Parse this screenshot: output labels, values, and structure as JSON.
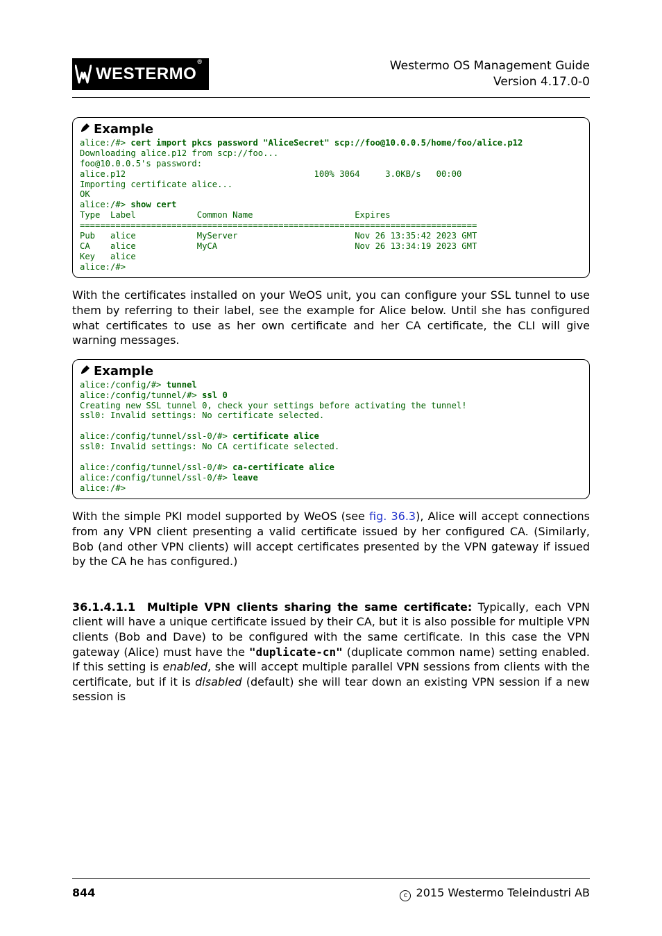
{
  "header": {
    "guide_title": "Westermo OS Management Guide",
    "version_line": "Version 4.17.0-0",
    "logo_text": "WESTERMO",
    "logo_bg": "#000000",
    "logo_fg": "#ffffff"
  },
  "example1": {
    "label": "Example",
    "terminal_color": "#006000",
    "lines": [
      {
        "prompt": "alice:/#> ",
        "cmd": "cert import pkcs password \"AliceSecret\" scp://foo@10.0.0.5/home/foo/alice.p12"
      },
      {
        "text": "Downloading alice.p12 from scp://foo..."
      },
      {
        "text": "foo@10.0.0.5's password:"
      },
      {
        "text": "alice.p12                                     100% 3064     3.0KB/s   00:00"
      },
      {
        "text": "Importing certificate alice..."
      },
      {
        "text": "OK"
      },
      {
        "prompt": "alice:/#> ",
        "cmd": "show cert"
      },
      {
        "text": "Type  Label            Common Name                    Expires"
      },
      {
        "text": "=============================================================================="
      },
      {
        "text": "Pub   alice            MyServer                       Nov 26 13:35:42 2023 GMT"
      },
      {
        "text": "CA    alice            MyCA                           Nov 26 13:34:19 2023 GMT"
      },
      {
        "text": "Key   alice"
      },
      {
        "prompt": "alice:/#>",
        "cmd": ""
      }
    ]
  },
  "para1": "With the certificates installed on your WeOS unit, you can configure your SSL tunnel to use them by referring to their label, see the example for Alice below. Until she has configured what certificates to use as her own certificate and her CA certificate, the CLI will give warning messages.",
  "example2": {
    "label": "Example",
    "terminal_color": "#006000",
    "lines": [
      {
        "prompt": "alice:/config/#> ",
        "cmd": "tunnel"
      },
      {
        "prompt": "alice:/config/tunnel/#> ",
        "cmd": "ssl 0"
      },
      {
        "text": "Creating new SSL tunnel 0, check your settings before activating the tunnel!"
      },
      {
        "text": "ssl0: Invalid settings: No certificate selected."
      },
      {
        "text": ""
      },
      {
        "prompt": "alice:/config/tunnel/ssl-0/#> ",
        "cmd": "certificate alice"
      },
      {
        "text": "ssl0: Invalid settings: No CA certificate selected."
      },
      {
        "text": ""
      },
      {
        "prompt": "alice:/config/tunnel/ssl-0/#> ",
        "cmd": "ca-certificate alice"
      },
      {
        "prompt": "alice:/config/tunnel/ssl-0/#> ",
        "cmd": "leave"
      },
      {
        "prompt": "alice:/#>",
        "cmd": ""
      }
    ]
  },
  "para2": {
    "pre": "With the simple PKI model supported by WeOS (see ",
    "link": "fig. 36.3",
    "post": "), Alice will accept connections from any VPN client presenting a valid certificate issued by her configured CA. (Similarly, Bob (and other VPN clients) will accept certificates presented by the VPN gateway if issued by the CA he has configured.)"
  },
  "section": {
    "number": "36.1.4.1.1",
    "title": "Multiple VPN clients sharing the same certificate:",
    "body_pre": "  Typically, each VPN client will have a unique certificate issued by their CA, but it is also possible for multiple VPN clients (Bob and Dave) to be configured with the same certificate. In this case the VPN gateway (Alice) must have the ",
    "mono": "\"duplicate-cn\"",
    "body_mid1": " (duplicate common name) setting enabled.  If this setting is ",
    "ital1": "enabled",
    "body_mid2": ", she will accept multiple parallel VPN sessions from clients with the certificate, but if it is ",
    "ital2": "disabled",
    "body_post": " (default) she will tear down an existing VPN session if a new session is"
  },
  "footer": {
    "page": "844",
    "copyright": "2015 Westermo Teleindustri AB"
  }
}
